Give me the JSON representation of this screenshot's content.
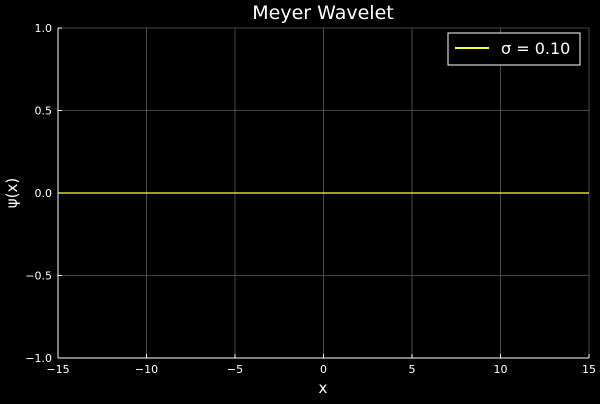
{
  "chart_data": {
    "type": "line",
    "title": "Meyer Wavelet",
    "xlabel": "x",
    "ylabel": "ψ(x)",
    "xlim": [
      -15,
      15
    ],
    "ylim": [
      -1.0,
      1.0
    ],
    "xticks": [
      -15,
      -10,
      -5,
      0,
      5,
      10,
      15
    ],
    "xtick_labels": [
      "−15",
      "−10",
      "−5",
      "0",
      "5",
      "10",
      "15"
    ],
    "yticks": [
      -1.0,
      -0.5,
      0.0,
      0.5,
      1.0
    ],
    "ytick_labels": [
      "−1.0",
      "−0.5",
      "0.0",
      "0.5",
      "1.0"
    ],
    "grid": true,
    "legend_position": "top-right",
    "series": [
      {
        "name": "σ = 0.10",
        "color": "#ffff33",
        "x": [
          -15,
          -10,
          -5,
          0,
          5,
          10,
          15
        ],
        "y": [
          0,
          0,
          0,
          0,
          0,
          0,
          0
        ]
      }
    ]
  },
  "colors": {
    "background": "#000000",
    "axis": "#ffffff",
    "grid": "#5a5a5a",
    "text": "#ffffff"
  }
}
